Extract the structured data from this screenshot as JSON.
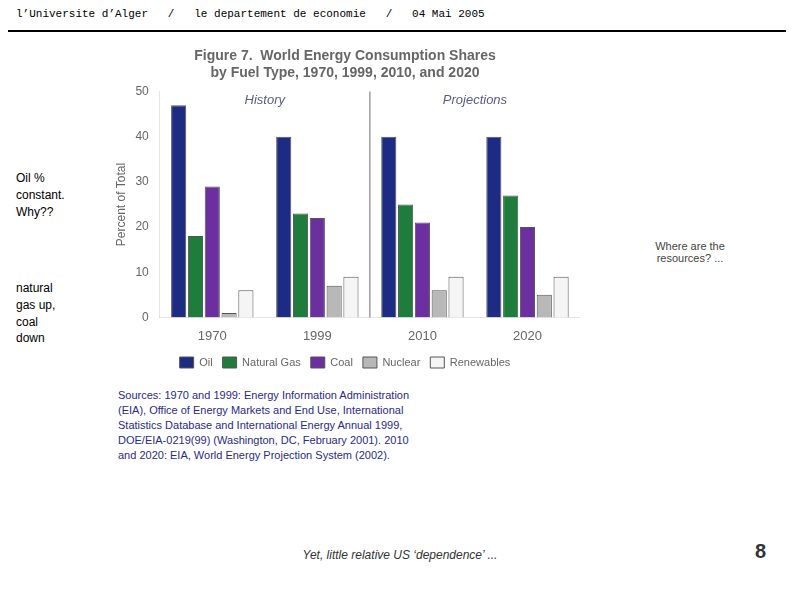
{
  "chart_data": {
    "type": "bar",
    "title": "Figure 7.  World Energy Consumption Shares",
    "subtitle": "by Fuel Type, 1970, 1999, 2010, and 2020",
    "ylabel": "Percent of Total",
    "categories": [
      "1970",
      "1999",
      "2010",
      "2020"
    ],
    "series": [
      {
        "name": "Oil",
        "color": "#1e2b82",
        "values": [
          47,
          40,
          40,
          40
        ]
      },
      {
        "name": "Natural Gas",
        "color": "#1e7d3c",
        "values": [
          18,
          23,
          25,
          27
        ]
      },
      {
        "name": "Coal",
        "color": "#6b2fa0",
        "values": [
          29,
          22,
          21,
          20
        ]
      },
      {
        "name": "Nuclear",
        "color": "#b8b8b8",
        "values": [
          1,
          7,
          6,
          5
        ]
      },
      {
        "name": "Renewables",
        "color": "#f5f5f5",
        "values": [
          6,
          9,
          9,
          9
        ]
      }
    ],
    "ylim": [
      0,
      50
    ],
    "yticks": [
      0,
      10,
      20,
      30,
      40,
      50
    ],
    "grid": false,
    "legend": "bottom",
    "annotations": [
      "History",
      "Projections"
    ],
    "header": "l’Universite d’Alger   /   le departement de economie   /   04 Mai 2005",
    "source": [
      "Sources: 1970 and 1999: Energy Information Administration",
      "(EIA), Office of Energy Markets and End Use, International",
      "Statistics Database and International Energy Annual 1999,",
      "DOE/EIA-0219(99) (Washington, DC, February 2001). 2010",
      "and 2020: EIA, World Energy Projection System (2002)."
    ],
    "notes": [
      "Oil %\nconstant.\nWhy??",
      "natural\ngas up,\ncoal\ndown"
    ],
    "side_note": "Where are the\nresources? ...",
    "caption": "Yet, little relative US ‘dependence’ ...",
    "page_number": "8"
  }
}
